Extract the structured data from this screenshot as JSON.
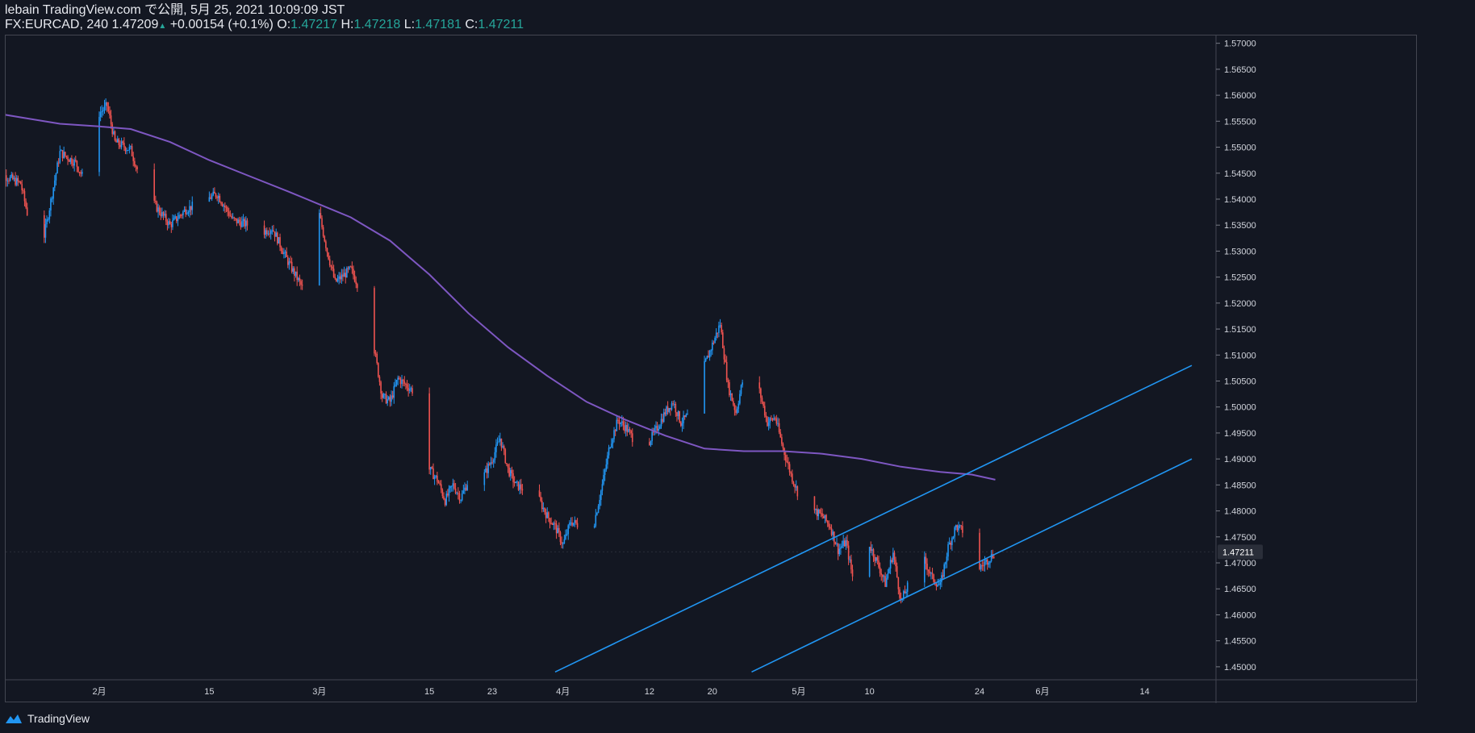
{
  "header": {
    "publish_line": "lebain TradingView.com で公開, 5月 25, 2021 10:09:09 JST",
    "symbol": "FX:EURCAD, 240",
    "last": "1.47209",
    "change_arrow": "▲",
    "change": "+0.00154 (+0.1%)",
    "o_label": "O:",
    "o_value": "1.47217",
    "h_label": "H:",
    "h_value": "1.47218",
    "l_label": "L:",
    "l_value": "1.47181",
    "c_label": "C:",
    "c_value": "1.47211"
  },
  "footer": {
    "brand": "TradingView",
    "logo_icon": "tradingview-logo-icon"
  },
  "colors": {
    "background": "#131722",
    "up": "#2196f3",
    "down": "#ef5350",
    "ma": "#7e57c2",
    "channel": "#2196f3",
    "axis_text": "#d1d4dc",
    "up_text": "#26a69a"
  },
  "chart_data": {
    "type": "candlestick",
    "timeframe": "240",
    "ylim": [
      1.4475,
      1.5715
    ],
    "yticks": [
      "1.57000",
      "1.56500",
      "1.56000",
      "1.55500",
      "1.55000",
      "1.54500",
      "1.54000",
      "1.53500",
      "1.53000",
      "1.52500",
      "1.52000",
      "1.51500",
      "1.51000",
      "1.50500",
      "1.50000",
      "1.49500",
      "1.49000",
      "1.48500",
      "1.48000",
      "1.47500",
      "1.47000",
      "1.46500",
      "1.46000",
      "1.45500",
      "1.45000"
    ],
    "xticks": [
      {
        "label": "2月",
        "date": "2021-02-01"
      },
      {
        "label": "15",
        "date": "2021-02-15"
      },
      {
        "label": "3月",
        "date": "2021-03-01"
      },
      {
        "label": "15",
        "date": "2021-03-15"
      },
      {
        "label": "23",
        "date": "2021-03-23"
      },
      {
        "label": "4月",
        "date": "2021-04-01"
      },
      {
        "label": "12",
        "date": "2021-04-12"
      },
      {
        "label": "20",
        "date": "2021-04-20"
      },
      {
        "label": "5月",
        "date": "2021-05-01"
      },
      {
        "label": "10",
        "date": "2021-05-10"
      },
      {
        "label": "24",
        "date": "2021-05-24"
      },
      {
        "label": "6月",
        "date": "2021-06-01"
      },
      {
        "label": "14",
        "date": "2021-06-14"
      }
    ],
    "last_price_label": "1.47211",
    "price_path": [
      [
        "2021-01-19",
        1.54
      ],
      [
        "2021-01-20",
        1.5445
      ],
      [
        "2021-01-22",
        1.543
      ],
      [
        "2021-01-24",
        1.5295
      ],
      [
        "2021-01-25",
        1.533
      ],
      [
        "2021-01-27",
        1.549
      ],
      [
        "2021-01-29",
        1.547
      ],
      [
        "2021-01-30",
        1.544
      ],
      [
        "2021-02-01",
        1.5565
      ],
      [
        "2021-02-02",
        1.558
      ],
      [
        "2021-02-03",
        1.551
      ],
      [
        "2021-02-05",
        1.5495
      ],
      [
        "2021-02-06",
        1.545
      ],
      [
        "2021-02-08",
        1.539
      ],
      [
        "2021-02-10",
        1.535
      ],
      [
        "2021-02-12",
        1.538
      ],
      [
        "2021-02-14",
        1.5395
      ],
      [
        "2021-02-16",
        1.541
      ],
      [
        "2021-02-18",
        1.536
      ],
      [
        "2021-02-20",
        1.535
      ],
      [
        "2021-02-21",
        1.533
      ],
      [
        "2021-02-23",
        1.5345
      ],
      [
        "2021-02-25",
        1.528
      ],
      [
        "2021-02-27",
        1.5225
      ],
      [
        "2021-02-28",
        1.533
      ],
      [
        "2021-03-01",
        1.537
      ],
      [
        "2021-03-02",
        1.53
      ],
      [
        "2021-03-03",
        1.524
      ],
      [
        "2021-03-05",
        1.5265
      ],
      [
        "2021-03-07",
        1.52
      ],
      [
        "2021-03-08",
        1.511
      ],
      [
        "2021-03-09",
        1.502
      ],
      [
        "2021-03-10",
        1.501
      ],
      [
        "2021-03-11",
        1.5055
      ],
      [
        "2021-03-13",
        1.503
      ],
      [
        "2021-03-14",
        1.492
      ],
      [
        "2021-03-15",
        1.488
      ],
      [
        "2021-03-16",
        1.486
      ],
      [
        "2021-03-17",
        1.482
      ],
      [
        "2021-03-18",
        1.485
      ],
      [
        "2021-03-19",
        1.4825
      ],
      [
        "2021-03-20",
        1.486
      ],
      [
        "2021-03-22",
        1.487
      ],
      [
        "2021-03-23",
        1.49
      ],
      [
        "2021-03-24",
        1.494
      ],
      [
        "2021-03-25",
        1.488
      ],
      [
        "2021-03-26",
        1.485
      ],
      [
        "2021-03-28",
        1.4835
      ],
      [
        "2021-03-29",
        1.482
      ],
      [
        "2021-03-30",
        1.479
      ],
      [
        "2021-03-31",
        1.477
      ],
      [
        "2021-04-01",
        1.4735
      ],
      [
        "2021-04-02",
        1.478
      ],
      [
        "2021-04-04",
        1.4765
      ],
      [
        "2021-04-05",
        1.478
      ],
      [
        "2021-04-06",
        1.485
      ],
      [
        "2021-04-07",
        1.493
      ],
      [
        "2021-04-08",
        1.4975
      ],
      [
        "2021-04-09",
        1.496
      ],
      [
        "2021-04-11",
        1.4915
      ],
      [
        "2021-04-12",
        1.4935
      ],
      [
        "2021-04-13",
        1.496
      ],
      [
        "2021-04-14",
        1.499
      ],
      [
        "2021-04-15",
        1.501
      ],
      [
        "2021-04-16",
        1.497
      ],
      [
        "2021-04-17",
        1.4985
      ],
      [
        "2021-04-19",
        1.508
      ],
      [
        "2021-04-20",
        1.512
      ],
      [
        "2021-04-21",
        1.516
      ],
      [
        "2021-04-22",
        1.504
      ],
      [
        "2021-04-23",
        1.499
      ],
      [
        "2021-04-24",
        1.506
      ],
      [
        "2021-04-25",
        1.509
      ],
      [
        "2021-04-26",
        1.503
      ],
      [
        "2021-04-27",
        1.497
      ],
      [
        "2021-04-28",
        1.498
      ],
      [
        "2021-04-29",
        1.492
      ],
      [
        "2021-04-30",
        1.487
      ],
      [
        "2021-05-01",
        1.483
      ],
      [
        "2021-05-02",
        1.476
      ],
      [
        "2021-05-03",
        1.48
      ],
      [
        "2021-05-04",
        1.479
      ],
      [
        "2021-05-05",
        1.477
      ],
      [
        "2021-05-06",
        1.4725
      ],
      [
        "2021-05-07",
        1.474
      ],
      [
        "2021-05-08",
        1.466
      ],
      [
        "2021-05-09",
        1.475
      ],
      [
        "2021-05-10",
        1.4735
      ],
      [
        "2021-05-11",
        1.47
      ],
      [
        "2021-05-12",
        1.466
      ],
      [
        "2021-05-13",
        1.472
      ],
      [
        "2021-05-14",
        1.4625
      ],
      [
        "2021-05-15",
        1.466
      ],
      [
        "2021-05-16",
        1.469
      ],
      [
        "2021-05-17",
        1.4705
      ],
      [
        "2021-05-18",
        1.467
      ],
      [
        "2021-05-19",
        1.4655
      ],
      [
        "2021-05-20",
        1.473
      ],
      [
        "2021-05-21",
        1.477
      ],
      [
        "2021-05-22",
        1.476
      ],
      [
        "2021-05-23",
        1.4755
      ],
      [
        "2021-05-24",
        1.469
      ],
      [
        "2021-05-25",
        1.4705
      ],
      [
        "2021-05-26",
        1.4721
      ]
    ],
    "moving_average": [
      [
        "2021-01-19",
        1.5565
      ],
      [
        "2021-01-23",
        1.5555
      ],
      [
        "2021-01-27",
        1.5545
      ],
      [
        "2021-02-01",
        1.554
      ],
      [
        "2021-02-05",
        1.5535
      ],
      [
        "2021-02-10",
        1.551
      ],
      [
        "2021-02-15",
        1.5475
      ],
      [
        "2021-02-20",
        1.5445
      ],
      [
        "2021-02-25",
        1.5415
      ],
      [
        "2021-03-01",
        1.539
      ],
      [
        "2021-03-05",
        1.5365
      ],
      [
        "2021-03-10",
        1.532
      ],
      [
        "2021-03-15",
        1.5255
      ],
      [
        "2021-03-20",
        1.518
      ],
      [
        "2021-03-25",
        1.5115
      ],
      [
        "2021-03-30",
        1.506
      ],
      [
        "2021-04-04",
        1.501
      ],
      [
        "2021-04-09",
        1.4975
      ],
      [
        "2021-04-14",
        1.4945
      ],
      [
        "2021-04-19",
        1.492
      ],
      [
        "2021-04-24",
        1.4915
      ],
      [
        "2021-04-29",
        1.4915
      ],
      [
        "2021-05-04",
        1.491
      ],
      [
        "2021-05-09",
        1.49
      ],
      [
        "2021-05-14",
        1.4885
      ],
      [
        "2021-05-19",
        1.4875
      ],
      [
        "2021-05-23",
        1.487
      ],
      [
        "2021-05-26",
        1.486
      ]
    ],
    "channel_lines": [
      {
        "from": [
          "2021-03-31",
          1.449
        ],
        "to": [
          "2021-06-20",
          1.508
        ]
      },
      {
        "from": [
          "2021-04-25",
          1.449
        ],
        "to": [
          "2021-06-20",
          1.49
        ]
      }
    ]
  }
}
